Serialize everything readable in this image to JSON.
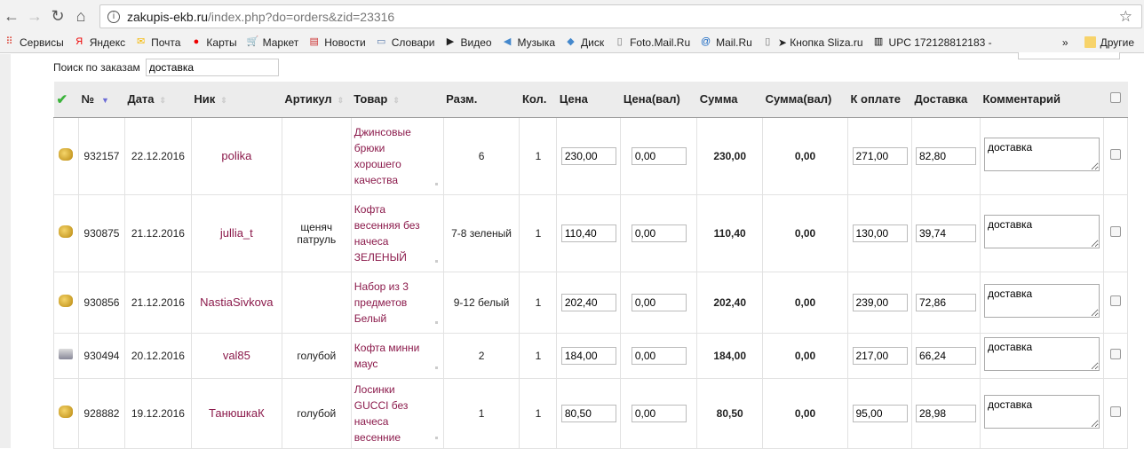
{
  "browser": {
    "url_domain": "zakupis-ekb.ru",
    "url_path": "/index.php?do=orders&zid=23316",
    "bookmarks": [
      {
        "label": "Сервисы",
        "icon": "apps-icon",
        "color": "#db4437"
      },
      {
        "label": "Яндекс",
        "icon": "yandex-icon",
        "color": "#e00"
      },
      {
        "label": "Почта",
        "icon": "mail-icon",
        "color": "#f5b800"
      },
      {
        "label": "Карты",
        "icon": "map-pin-icon",
        "color": "#e00"
      },
      {
        "label": "Маркет",
        "icon": "cart-icon",
        "color": "#1a5fb4"
      },
      {
        "label": "Новости",
        "icon": "news-icon",
        "color": "#c33"
      },
      {
        "label": "Словари",
        "icon": "dictionary-icon",
        "color": "#57a"
      },
      {
        "label": "Видео",
        "icon": "video-icon",
        "color": "#222"
      },
      {
        "label": "Музыка",
        "icon": "speaker-icon",
        "color": "#48c"
      },
      {
        "label": "Диск",
        "icon": "disk-icon",
        "color": "#48c"
      },
      {
        "label": "Foto.Mail.Ru",
        "icon": "page-icon",
        "color": "#777"
      },
      {
        "label": "Mail.Ru",
        "icon": "at-icon",
        "color": "#1565c0"
      },
      {
        "label": "➤ Кнопка Sliza.ru",
        "icon": "page-icon",
        "color": "#777"
      },
      {
        "label": "UPC 172128812183 -",
        "icon": "barcode-icon",
        "color": "#000"
      }
    ],
    "more": "»",
    "other": "Другие"
  },
  "search": {
    "label": "Поиск по заказам",
    "value": "доставка"
  },
  "headers": [
    "№",
    "Дата",
    "Ник",
    "Артикул",
    "Товар",
    "Разм.",
    "Кол.",
    "Цена",
    "Цена(вал)",
    "Сумма",
    "Сумма(вал)",
    "К оплате",
    "Доставка",
    "Комментарий"
  ],
  "rows": [
    {
      "icon": "coins",
      "id": "932157",
      "date": "22.12.2016",
      "nick": "polika",
      "article": "",
      "product": "Джинсовые брюки хорошего качества",
      "size": "6",
      "qty": "1",
      "price": "230,00",
      "price_cur": "0,00",
      "sum": "230,00",
      "sum_cur": "0,00",
      "to_pay": "271,00",
      "delivery": "82,80",
      "comment": "доставка"
    },
    {
      "icon": "coins",
      "id": "930875",
      "date": "21.12.2016",
      "nick": "jullia_t",
      "article": "щеняч патруль",
      "product": "Кофта весенняя без начеса ЗЕЛЕНЫЙ",
      "size": "7-8 зеленый",
      "qty": "1",
      "price": "110,40",
      "price_cur": "0,00",
      "sum": "110,40",
      "sum_cur": "0,00",
      "to_pay": "130,00",
      "delivery": "39,74",
      "comment": "доставка"
    },
    {
      "icon": "coins",
      "id": "930856",
      "date": "21.12.2016",
      "nick": "NastiaSivkova",
      "article": "",
      "product": "Набор из 3 предметов Белый",
      "size": "9-12 белый",
      "qty": "1",
      "price": "202,40",
      "price_cur": "0,00",
      "sum": "202,40",
      "sum_cur": "0,00",
      "to_pay": "239,00",
      "delivery": "72,86",
      "comment": "доставка"
    },
    {
      "icon": "printer",
      "id": "930494",
      "date": "20.12.2016",
      "nick": "val85",
      "article": "голубой",
      "product": "Кофта минни маус",
      "size": "2",
      "qty": "1",
      "price": "184,00",
      "price_cur": "0,00",
      "sum": "184,00",
      "sum_cur": "0,00",
      "to_pay": "217,00",
      "delivery": "66,24",
      "comment": "доставка"
    },
    {
      "icon": "coins",
      "id": "928882",
      "date": "19.12.2016",
      "nick": "ТанюшкаК",
      "article": "голубой",
      "product": "Лосинки GUCCI без начеса весенние",
      "size": "1",
      "qty": "1",
      "price": "80,50",
      "price_cur": "0,00",
      "sum": "80,50",
      "sum_cur": "0,00",
      "to_pay": "95,00",
      "delivery": "28,98",
      "comment": "доставка"
    }
  ]
}
